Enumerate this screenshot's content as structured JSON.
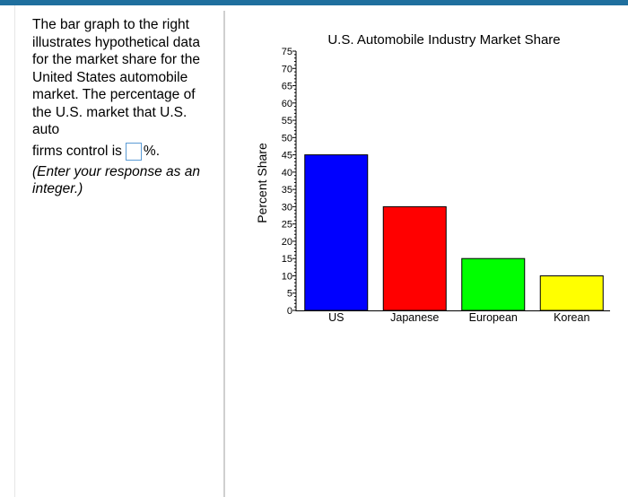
{
  "question": {
    "text": "The bar graph to the right illustrates hypothetical data for the market share for the United States automobile market.  The percentage of the U.S. market that U.S. auto",
    "answer_prefix": "firms control is",
    "answer_value": "",
    "answer_suffix": "%.",
    "hint": "(Enter your response as an integer.)"
  },
  "chart_data": {
    "type": "bar",
    "title": "U.S. Automobile Industry Market Share",
    "xlabel": "",
    "ylabel": "Percent Share",
    "categories": [
      "US",
      "Japanese",
      "European",
      "Korean"
    ],
    "values": [
      45,
      30,
      15,
      10
    ],
    "colors": [
      "#0000ff",
      "#ff0000",
      "#00ff00",
      "#ffff00"
    ],
    "ylim": [
      0,
      75
    ],
    "yticks": [
      0,
      5,
      10,
      15,
      20,
      25,
      30,
      35,
      40,
      45,
      50,
      55,
      60,
      65,
      70,
      75
    ],
    "grid": false
  }
}
